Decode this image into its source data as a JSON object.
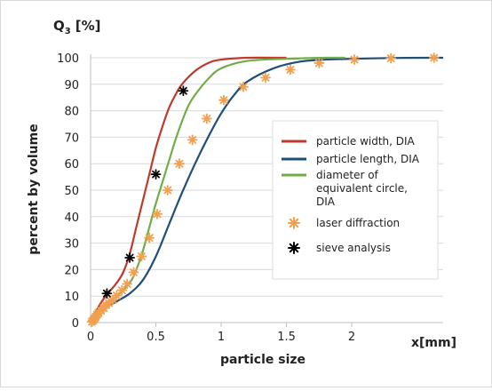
{
  "chart_data": {
    "type": "line",
    "title": "",
    "ylabel_corner_main": "Q",
    "ylabel_corner_sub": "3",
    "ylabel_corner_unit": "[%]",
    "ylabel": "percent by volume",
    "xlabel": "particle size",
    "xlabel_right": "x[mm]",
    "xlim": [
      0,
      2.7
    ],
    "ylim": [
      0,
      100
    ],
    "x_ticks": [
      0,
      0.5,
      1,
      1.5,
      2
    ],
    "x_tick_labels": [
      "0",
      "0.5",
      "1",
      "1.5",
      "2"
    ],
    "y_ticks": [
      0,
      10,
      20,
      30,
      40,
      50,
      60,
      70,
      80,
      90,
      100
    ],
    "y_tick_labels": [
      "0",
      "10",
      "20",
      "30",
      "40",
      "50",
      "60",
      "70",
      "80",
      "90",
      "100"
    ],
    "grid": "horizontal",
    "legend_position": "right",
    "series": [
      {
        "name": "particle width, DIA",
        "kind": "line",
        "color": "#c0392b",
        "points": [
          [
            0,
            0
          ],
          [
            0.05,
            5
          ],
          [
            0.1,
            9
          ],
          [
            0.15,
            12
          ],
          [
            0.2,
            15
          ],
          [
            0.25,
            19
          ],
          [
            0.3,
            26
          ],
          [
            0.35,
            36
          ],
          [
            0.4,
            46
          ],
          [
            0.45,
            56
          ],
          [
            0.5,
            66
          ],
          [
            0.55,
            74
          ],
          [
            0.6,
            81
          ],
          [
            0.65,
            86
          ],
          [
            0.7,
            90
          ],
          [
            0.8,
            95
          ],
          [
            0.9,
            98
          ],
          [
            1.0,
            99.3
          ],
          [
            1.2,
            100
          ],
          [
            1.5,
            100
          ]
        ]
      },
      {
        "name": "particle length, DIA",
        "kind": "line",
        "color": "#1f4e79",
        "points": [
          [
            0,
            0
          ],
          [
            0.1,
            5
          ],
          [
            0.2,
            8
          ],
          [
            0.3,
            11
          ],
          [
            0.4,
            16
          ],
          [
            0.5,
            25
          ],
          [
            0.6,
            37
          ],
          [
            0.7,
            49
          ],
          [
            0.8,
            60
          ],
          [
            0.9,
            70
          ],
          [
            1.0,
            79
          ],
          [
            1.1,
            86
          ],
          [
            1.2,
            91
          ],
          [
            1.4,
            96
          ],
          [
            1.6,
            98.5
          ],
          [
            1.8,
            99.3
          ],
          [
            2.0,
            99.6
          ],
          [
            2.3,
            99.9
          ],
          [
            2.6,
            100
          ],
          [
            2.7,
            100
          ]
        ]
      },
      {
        "name": "diameter of equivalent circle, DIA",
        "kind": "line",
        "color": "#70ad47",
        "points": [
          [
            0,
            0
          ],
          [
            0.1,
            6
          ],
          [
            0.2,
            10
          ],
          [
            0.3,
            15
          ],
          [
            0.35,
            20
          ],
          [
            0.4,
            27
          ],
          [
            0.45,
            36
          ],
          [
            0.5,
            45
          ],
          [
            0.55,
            53
          ],
          [
            0.6,
            61
          ],
          [
            0.65,
            69
          ],
          [
            0.7,
            76
          ],
          [
            0.75,
            82
          ],
          [
            0.8,
            86
          ],
          [
            0.9,
            92
          ],
          [
            1.0,
            96
          ],
          [
            1.2,
            98.8
          ],
          [
            1.5,
            99.6
          ],
          [
            1.8,
            100
          ],
          [
            1.95,
            100
          ]
        ]
      },
      {
        "name": "laser diffraction",
        "kind": "marker",
        "color": "#f0a050",
        "points": [
          [
            0.01,
            0.3
          ],
          [
            0.02,
            0.8
          ],
          [
            0.03,
            1.5
          ],
          [
            0.04,
            2.2
          ],
          [
            0.05,
            3.0
          ],
          [
            0.06,
            3.6
          ],
          [
            0.08,
            4.5
          ],
          [
            0.1,
            5.5
          ],
          [
            0.12,
            6.6
          ],
          [
            0.14,
            7.4
          ],
          [
            0.17,
            8.6
          ],
          [
            0.2,
            10.2
          ],
          [
            0.24,
            12.2
          ],
          [
            0.28,
            14.6
          ],
          [
            0.33,
            19
          ],
          [
            0.39,
            25
          ],
          [
            0.45,
            32
          ],
          [
            0.51,
            41
          ],
          [
            0.59,
            50
          ],
          [
            0.68,
            60
          ],
          [
            0.78,
            69
          ],
          [
            0.89,
            77
          ],
          [
            1.02,
            84
          ],
          [
            1.17,
            89
          ],
          [
            1.34,
            92.5
          ],
          [
            1.53,
            95.5
          ],
          [
            1.75,
            98
          ],
          [
            2.02,
            99.3
          ],
          [
            2.3,
            99.8
          ],
          [
            2.63,
            100
          ]
        ]
      },
      {
        "name": "sieve analysis",
        "kind": "marker",
        "color": "#000000",
        "points": [
          [
            0.125,
            11
          ],
          [
            0.3,
            24.5
          ],
          [
            0.5,
            56
          ],
          [
            0.71,
            87.5
          ]
        ]
      }
    ]
  }
}
